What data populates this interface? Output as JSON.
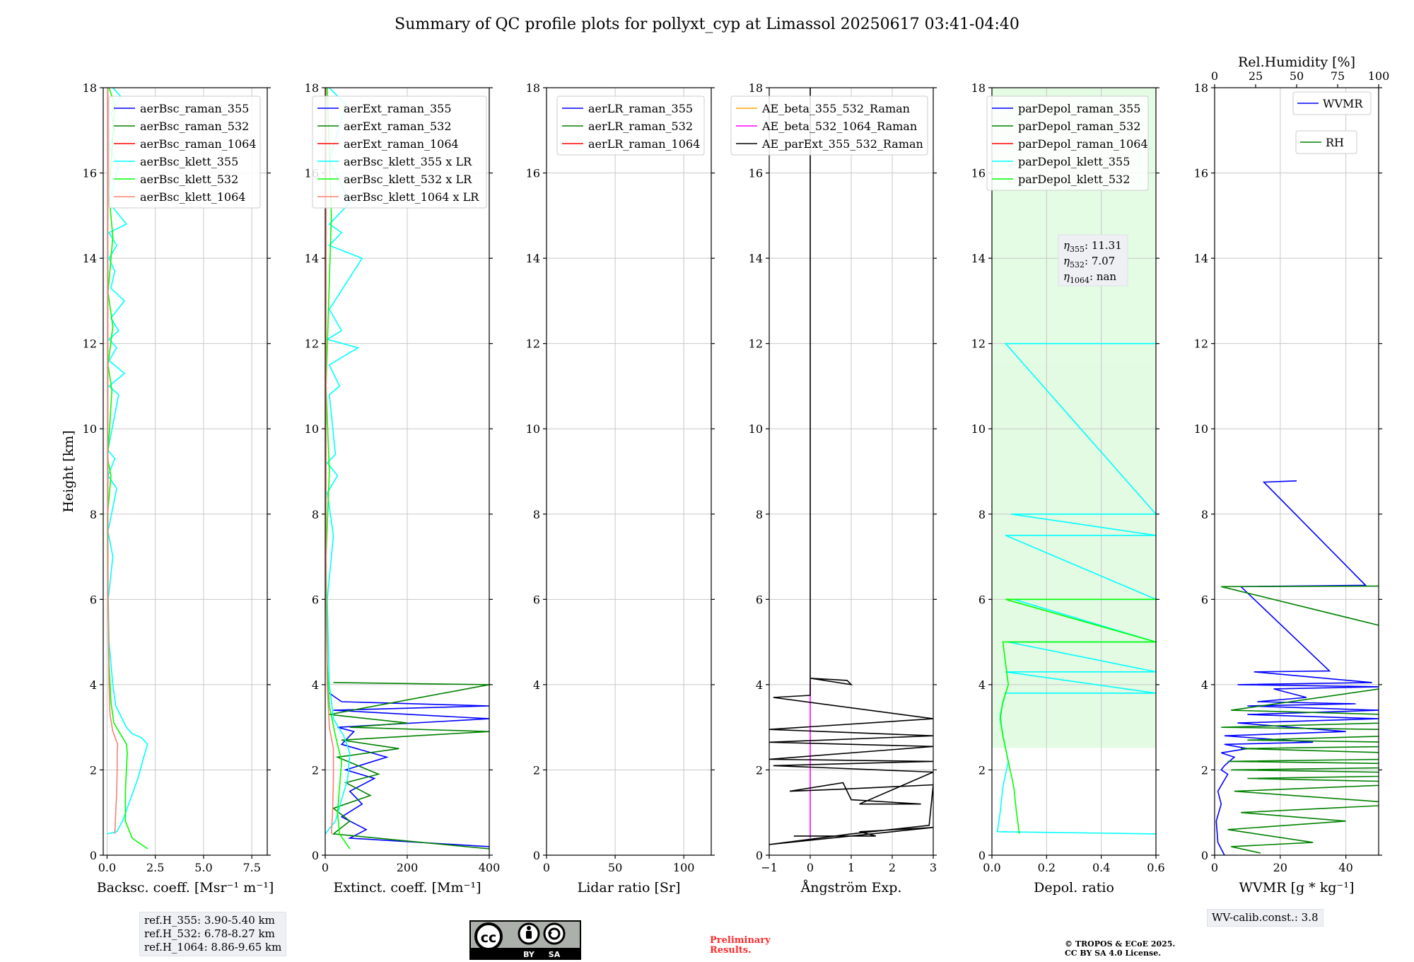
{
  "figure": {
    "title": "Summary of QC profile plots for pollyxt_cyp at Limassol 20250617 03:41-04:40",
    "y_label": "Height [km]"
  },
  "ref_heights": [
    "ref.H_355: 3.90-5.40 km",
    "ref.H_532: 6.78-8.27 km",
    "ref.H_1064: 8.86-9.65 km"
  ],
  "wv_calib": "WV-calib.const.: 3.8",
  "preliminary": [
    "Preliminary",
    "Results."
  ],
  "copyright": [
    "© TROPOS & ECoE 2025.",
    "CC BY SA 4.0 License."
  ],
  "cc_badge": {
    "by": "BY",
    "sa": "SA"
  },
  "colors": {
    "blue": "#0000ff",
    "green": "#008000",
    "red": "#ff0000",
    "cyan": "#00ffff",
    "lime": "#00ff00",
    "salmon": "#fa8072",
    "orange": "#ffa500",
    "magenta": "#ff00ff",
    "black": "#000000"
  },
  "chart_data": [
    {
      "type": "line",
      "xlabel": "Backsc. coeff. [Msr⁻¹ m⁻¹]",
      "ylabel": "Height [km]",
      "xlim": [
        -0.2,
        8.3
      ],
      "ylim": [
        0,
        18
      ],
      "xticks": [
        0,
        2.5,
        5,
        7.5
      ],
      "xtick_labels": [
        "0.0",
        "2.5",
        "5.0",
        "7.5"
      ],
      "yticks": [
        0,
        2,
        4,
        6,
        8,
        10,
        12,
        14,
        16,
        18
      ],
      "grid": true,
      "legend_position": "top-right",
      "series": [
        {
          "name": "aerBsc_raman_355",
          "color": "#0000ff",
          "x": [],
          "y": []
        },
        {
          "name": "aerBsc_raman_532",
          "color": "#008000",
          "x": [],
          "y": []
        },
        {
          "name": "aerBsc_raman_1064",
          "color": "#ff0000",
          "x": [],
          "y": []
        },
        {
          "name": "aerBsc_klett_355",
          "color": "#00ffff",
          "x": [
            0.0,
            0.5,
            0.8,
            1.2,
            1.6,
            1.9,
            2.1,
            1.8,
            1.3,
            1.0,
            0.45,
            0.3,
            0.2,
            0.1,
            0.06,
            0.3,
            0.05,
            0.5,
            0.05,
            0.4,
            0.05,
            0.6,
            0.1,
            0.9,
            0.1,
            0.5,
            0.1,
            0.6,
            0.2,
            0.9,
            0.2,
            0.4,
            0.1,
            0.5,
            0.1,
            1.0,
            0.1,
            0.6,
            0.1,
            0.4,
            0.2,
            0.7,
            0.3
          ],
          "y": [
            0.5,
            0.55,
            0.8,
            1.3,
            1.8,
            2.3,
            2.6,
            2.75,
            2.85,
            3.0,
            3.5,
            4.0,
            4.5,
            5.0,
            6.0,
            7.0,
            7.6,
            8.6,
            8.9,
            9.3,
            9.5,
            10.8,
            11.0,
            11.3,
            11.6,
            11.9,
            12.1,
            12.3,
            12.6,
            13.0,
            13.3,
            13.7,
            14.0,
            14.3,
            14.6,
            14.8,
            15.3,
            16.2,
            16.6,
            17.0,
            17.4,
            17.8,
            18.0
          ]
        },
        {
          "name": "aerBsc_klett_532",
          "color": "#00ff00",
          "x": [
            2.1,
            1.3,
            0.95,
            0.95,
            1.0,
            1.05,
            1.0,
            0.75,
            0.35,
            0.2,
            0.1,
            0.05,
            0.03,
            0.2,
            0.03,
            0.25,
            0.05,
            0.3,
            0.05,
            0.3,
            0.1,
            0.4,
            0.1
          ],
          "y": [
            0.15,
            0.4,
            0.8,
            1.5,
            2.0,
            2.4,
            2.6,
            2.8,
            3.1,
            3.6,
            4.5,
            6.0,
            8.0,
            8.9,
            9.3,
            10.9,
            11.5,
            12.4,
            13.2,
            14.5,
            15.5,
            17.6,
            18.0
          ]
        },
        {
          "name": "aerBsc_klett_1064",
          "color": "#fa8072",
          "x": [
            0.4,
            0.45,
            0.5,
            0.52,
            0.52,
            0.55,
            0.3,
            0.15,
            0.1,
            0.05,
            0.04,
            0.04
          ],
          "y": [
            0.5,
            1.0,
            1.5,
            2.0,
            2.4,
            2.6,
            2.9,
            3.3,
            4.0,
            6.0,
            10.0,
            18.0
          ]
        }
      ]
    },
    {
      "type": "line",
      "xlabel": "Extinct. coeff. [Mm⁻¹]",
      "xlim": [
        0,
        400
      ],
      "ylim": [
        0,
        18
      ],
      "xticks": [
        0,
        200,
        400
      ],
      "xtick_labels": [
        "0",
        "200",
        "400"
      ],
      "yticks": [
        0,
        2,
        4,
        6,
        8,
        10,
        12,
        14,
        16,
        18
      ],
      "grid": true,
      "legend_position": "top-right",
      "series": [
        {
          "name": "aerExt_raman_355",
          "color": "#0000ff",
          "x": [
            400,
            60,
            100,
            40,
            90,
            60,
            120,
            50,
            150,
            40,
            70,
            30,
            400,
            20,
            400,
            40,
            10
          ],
          "y": [
            0.2,
            0.4,
            0.6,
            0.9,
            1.2,
            1.5,
            1.8,
            2.0,
            2.3,
            2.6,
            2.9,
            3.0,
            3.2,
            3.4,
            3.5,
            3.6,
            3.8
          ]
        },
        {
          "name": "aerExt_raman_532",
          "color": "#008000",
          "x": [
            400,
            20,
            60,
            20,
            110,
            50,
            130,
            30,
            180,
            40,
            400,
            60,
            200,
            10,
            400,
            20
          ],
          "y": [
            0.15,
            0.5,
            0.8,
            1.1,
            1.4,
            1.7,
            1.9,
            2.3,
            2.5,
            2.7,
            2.9,
            3.0,
            3.1,
            3.3,
            4.0,
            4.05
          ]
        },
        {
          "name": "aerExt_raman_1064",
          "color": "#ff0000",
          "x": [],
          "y": []
        },
        {
          "name": "aerBsc_klett_355 x LR",
          "color": "#00ffff",
          "x": [
            0,
            25,
            40,
            55,
            60,
            45,
            20,
            10,
            5,
            20,
            5,
            30,
            5,
            25,
            10,
            35,
            10,
            80,
            5,
            40,
            10,
            90,
            10,
            40,
            10,
            60,
            10,
            50,
            10
          ],
          "y": [
            0.5,
            0.8,
            1.3,
            1.8,
            2.4,
            2.8,
            3.2,
            4.0,
            6.0,
            7.5,
            8.5,
            8.9,
            9.2,
            9.4,
            10.8,
            11.0,
            11.5,
            11.9,
            12.1,
            12.3,
            12.8,
            14.0,
            14.3,
            14.6,
            14.8,
            15.3,
            16.3,
            17.6,
            18.0
          ]
        },
        {
          "name": "aerBsc_klett_532 x LR",
          "color": "#00ff00",
          "x": [
            60,
            35,
            30,
            35,
            40,
            25,
            10,
            5,
            2,
            10,
            2,
            15,
            5
          ],
          "y": [
            0.15,
            0.5,
            1.0,
            1.6,
            2.2,
            2.8,
            3.5,
            4.5,
            7.0,
            9.0,
            11.0,
            15.0,
            18.0
          ]
        },
        {
          "name": "aerBsc_klett_1064 x LR",
          "color": "#fa8072",
          "x": [
            15,
            18,
            20,
            20,
            10,
            5,
            2,
            2
          ],
          "y": [
            0.5,
            1.0,
            1.8,
            2.5,
            3.0,
            4.0,
            6.0,
            18.0
          ]
        }
      ]
    },
    {
      "type": "line",
      "xlabel": "Lidar ratio [Sr]",
      "xlim": [
        0,
        120
      ],
      "ylim": [
        0,
        18
      ],
      "xticks": [
        0,
        50,
        100
      ],
      "xtick_labels": [
        "0",
        "50",
        "100"
      ],
      "yticks": [
        0,
        2,
        4,
        6,
        8,
        10,
        12,
        14,
        16,
        18
      ],
      "grid": true,
      "legend_position": "top-right",
      "series": [
        {
          "name": "aerLR_raman_355",
          "color": "#0000ff",
          "x": [],
          "y": []
        },
        {
          "name": "aerLR_raman_532",
          "color": "#008000",
          "x": [],
          "y": []
        },
        {
          "name": "aerLR_raman_1064",
          "color": "#ff0000",
          "x": [],
          "y": []
        }
      ]
    },
    {
      "type": "line",
      "xlabel": "Ångström Exp.",
      "xlim": [
        -1,
        3
      ],
      "ylim": [
        0,
        18
      ],
      "xticks": [
        -1,
        0,
        1,
        2,
        3
      ],
      "xtick_labels": [
        "−1",
        "0",
        "1",
        "2",
        "3"
      ],
      "yticks": [
        0,
        2,
        4,
        6,
        8,
        10,
        12,
        14,
        16,
        18
      ],
      "grid": true,
      "legend_position": "top-right",
      "series": [
        {
          "name": "AE_beta_355_532_Raman",
          "color": "#ffa500",
          "x": [],
          "y": []
        },
        {
          "name": "AE_beta_532_1064_Raman",
          "color": "#ff00ff",
          "x": [
            0,
            0,
            0
          ],
          "y": [
            0.4,
            2.0,
            4.1
          ]
        },
        {
          "name": "AE_parExt_355_532_Raman",
          "color": "#000000",
          "x": [
            -0.4,
            1.6,
            1.2,
            3.0,
            -1.0,
            1.0,
            2.9,
            3.0,
            0.8,
            -0.5,
            0.8,
            1.0,
            2.7,
            1.2,
            3.0,
            -0.9,
            3.0,
            -1.0,
            3.0,
            -1.0,
            3.0,
            -1.0,
            3.0,
            -0.9,
            0.0,
            0.0,
            0.9,
            1.0,
            0.0,
            0.0
          ],
          "y": [
            0.45,
            0.45,
            0.55,
            0.65,
            0.25,
            0.5,
            0.7,
            1.65,
            1.55,
            1.5,
            1.7,
            1.3,
            1.2,
            1.2,
            1.95,
            2.1,
            2.2,
            2.25,
            2.55,
            2.65,
            2.8,
            2.95,
            3.2,
            3.7,
            3.75,
            4.15,
            4.1,
            4.0,
            4.15,
            18.0
          ]
        }
      ]
    },
    {
      "type": "line",
      "xlabel": "Depol. ratio",
      "xlim": [
        0,
        0.6
      ],
      "ylim": [
        0,
        18
      ],
      "xticks": [
        0,
        0.2,
        0.4,
        0.6
      ],
      "xtick_labels": [
        "0.0",
        "0.2",
        "0.4",
        "0.6"
      ],
      "yticks": [
        0,
        2,
        4,
        6,
        8,
        10,
        12,
        14,
        16,
        18
      ],
      "grid": true,
      "legend_position": "top-left",
      "annotation": {
        "eta355": "11.31",
        "eta532": "7.07",
        "eta1064": "nan"
      },
      "series": [
        {
          "name": "parDepol_raman_355",
          "color": "#0000ff",
          "x": [],
          "y": []
        },
        {
          "name": "parDepol_raman_532",
          "color": "#008000",
          "x": [],
          "y": []
        },
        {
          "name": "parDepol_raman_1064",
          "color": "#ff0000",
          "x": [],
          "y": []
        },
        {
          "name": "parDepol_klett_355",
          "color": "#00ffff",
          "x": [
            0.6,
            0.02,
            0.03,
            0.04,
            0.06,
            0.04,
            0.03,
            0.05,
            0.6,
            0.05,
            0.6,
            0.06,
            0.6,
            0.08,
            0.6,
            0.05,
            0.6,
            0.07,
            0.6,
            0.05,
            0.6
          ],
          "y": [
            0.5,
            0.55,
            1.0,
            1.6,
            2.2,
            2.8,
            3.3,
            3.8,
            3.8,
            4.3,
            4.3,
            5.0,
            5.0,
            6.0,
            6.0,
            7.5,
            7.5,
            8.0,
            8.0,
            12.0,
            12.0
          ]
        },
        {
          "name": "parDepol_klett_532",
          "color": "#00ff00",
          "x": [
            0.1,
            0.09,
            0.08,
            0.06,
            0.04,
            0.03,
            0.04,
            0.06,
            0.05,
            0.04,
            0.6,
            0.05,
            0.6
          ],
          "y": [
            0.5,
            1.0,
            1.6,
            2.2,
            2.8,
            3.2,
            3.6,
            4.0,
            4.5,
            5.0,
            5.0,
            6.0,
            6.0
          ]
        }
      ]
    },
    {
      "type": "line",
      "xlabel": "WVMR [g * kg⁻¹]",
      "top_xlabel": "Rel.Humidity [%]",
      "xlim": [
        0,
        50
      ],
      "ylim": [
        0,
        18
      ],
      "xticks": [
        0,
        20,
        40
      ],
      "xtick_labels": [
        "0",
        "20",
        "40"
      ],
      "top_xlim": [
        0,
        100
      ],
      "top_xticks": [
        0,
        25,
        50,
        75,
        100
      ],
      "top_xtick_labels": [
        "0",
        "25",
        "50",
        "75",
        "100"
      ],
      "yticks": [
        0,
        2,
        4,
        6,
        8,
        10,
        12,
        14,
        16,
        18
      ],
      "grid": true,
      "legend_position": "top-right",
      "series": [
        {
          "name": "WVMR",
          "color": "#0000ff",
          "x": [
            3,
            1,
            0.5,
            2,
            1,
            4,
            2,
            3,
            6,
            2,
            10,
            3,
            30,
            3,
            40,
            7,
            50,
            10,
            50,
            10,
            43,
            13,
            28,
            18,
            50,
            7,
            48,
            12,
            35,
            8,
            46,
            15,
            25
          ],
          "y": [
            0.0,
            0.3,
            0.8,
            1.2,
            1.5,
            1.9,
            2.0,
            2.1,
            2.3,
            2.4,
            2.5,
            2.6,
            2.65,
            2.8,
            2.9,
            3.1,
            3.2,
            3.3,
            3.4,
            3.5,
            3.55,
            3.6,
            3.7,
            3.9,
            3.95,
            4.0,
            4.05,
            4.3,
            4.32,
            6.3,
            6.33,
            8.75,
            8.78
          ]
        },
        {
          "name": "RH",
          "color": "#008000",
          "x": [
            14,
            5,
            30,
            4,
            40,
            8,
            60,
            6,
            70,
            10,
            90,
            5,
            100,
            4,
            100,
            8,
            100,
            10,
            100,
            2,
            100,
            5,
            100,
            2,
            90
          ],
          "y": [
            0.05,
            0.2,
            0.3,
            0.6,
            0.8,
            1.0,
            1.2,
            1.5,
            1.7,
            1.8,
            1.9,
            2.0,
            2.1,
            2.2,
            2.3,
            2.5,
            2.6,
            2.7,
            2.9,
            3.0,
            3.2,
            3.4,
            4.45,
            6.3,
            6.32
          ]
        }
      ]
    }
  ]
}
